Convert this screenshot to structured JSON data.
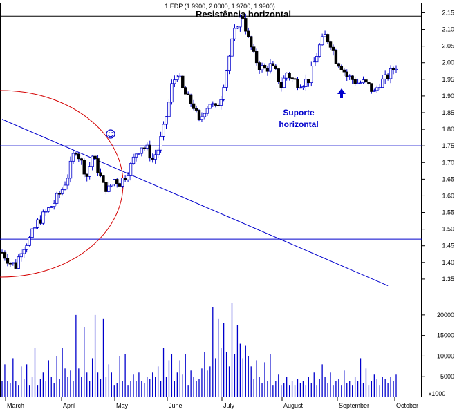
{
  "chart_data": {
    "type": "candlestick",
    "header": "1 EDP (1.9900, 2.0000, 1.9700, 1.9900)",
    "title": "Resistência horizontal",
    "annotations": [
      {
        "text_lines": [
          "Suporte",
          "horizontal"
        ]
      }
    ],
    "price_axis": {
      "ylim": [
        1.3,
        2.18
      ],
      "ticks": [
        "2.15",
        "2.10",
        "2.05",
        "2.00",
        "1.95",
        "1.90",
        "1.85",
        "1.80",
        "1.75",
        "1.70",
        "1.65",
        "1.60",
        "1.55",
        "1.50",
        "1.45",
        "1.40",
        "1.35"
      ]
    },
    "volume_axis": {
      "ylim": [
        0,
        23000
      ],
      "ticks": [
        "20000",
        "15000",
        "10000",
        "5000"
      ],
      "multiplier": "x1000"
    },
    "x_axis": {
      "months": [
        "March",
        "April",
        "May",
        "June",
        "July",
        "August",
        "September",
        "October"
      ]
    },
    "horizontal_lines": [
      2.14,
      1.93,
      1.75,
      1.47
    ],
    "trend_line": {
      "from": [
        0,
        1.83
      ],
      "to": [
        141,
        1.33
      ]
    },
    "price_path": [
      [
        0,
        1.43
      ],
      [
        3,
        1.4
      ],
      [
        5,
        1.39
      ],
      [
        7,
        1.44
      ],
      [
        10,
        1.47
      ],
      [
        13,
        1.52
      ],
      [
        16,
        1.55
      ],
      [
        19,
        1.58
      ],
      [
        22,
        1.62
      ],
      [
        24,
        1.66
      ],
      [
        26,
        1.72
      ],
      [
        27,
        1.74
      ],
      [
        29,
        1.7
      ],
      [
        31,
        1.66
      ],
      [
        33,
        1.72
      ],
      [
        35,
        1.68
      ],
      [
        37,
        1.63
      ],
      [
        39,
        1.62
      ],
      [
        41,
        1.65
      ],
      [
        43,
        1.64
      ],
      [
        45,
        1.66
      ],
      [
        47,
        1.69
      ],
      [
        49,
        1.73
      ],
      [
        51,
        1.75
      ],
      [
        53,
        1.74
      ],
      [
        55,
        1.71
      ],
      [
        57,
        1.74
      ],
      [
        59,
        1.8
      ],
      [
        61,
        1.88
      ],
      [
        62,
        1.93
      ],
      [
        64,
        1.97
      ],
      [
        66,
        1.92
      ],
      [
        68,
        1.89
      ],
      [
        70,
        1.87
      ],
      [
        72,
        1.82
      ],
      [
        74,
        1.86
      ],
      [
        76,
        1.88
      ],
      [
        78,
        1.86
      ],
      [
        80,
        1.9
      ],
      [
        82,
        1.98
      ],
      [
        84,
        2.06
      ],
      [
        86,
        2.12
      ],
      [
        88,
        2.14
      ],
      [
        90,
        2.07
      ],
      [
        92,
        2.02
      ],
      [
        94,
        1.99
      ],
      [
        96,
        1.98
      ],
      [
        98,
        1.99
      ],
      [
        100,
        1.97
      ],
      [
        102,
        1.93
      ],
      [
        104,
        1.97
      ],
      [
        106,
        1.95
      ],
      [
        108,
        1.94
      ],
      [
        110,
        1.94
      ],
      [
        112,
        1.95
      ],
      [
        114,
        2.0
      ],
      [
        116,
        2.05
      ],
      [
        118,
        2.08
      ],
      [
        120,
        2.06
      ],
      [
        122,
        2.01
      ],
      [
        124,
        1.99
      ],
      [
        126,
        1.96
      ],
      [
        128,
        1.95
      ],
      [
        130,
        1.94
      ],
      [
        132,
        1.94
      ],
      [
        134,
        1.93
      ],
      [
        136,
        1.91
      ],
      [
        138,
        1.94
      ],
      [
        140,
        1.95
      ],
      [
        142,
        1.97
      ],
      [
        144,
        1.99
      ]
    ],
    "volume": [
      4000,
      8000,
      4000,
      3500,
      9500,
      4000,
      3000,
      7500,
      4500,
      8000,
      3000,
      5000,
      12000,
      3000,
      4500,
      6000,
      4000,
      9000,
      5000,
      3500,
      10000,
      4500,
      12000,
      7000,
      5000,
      6500,
      4000,
      20000,
      7000,
      5000,
      17000,
      6000,
      4000,
      9500,
      20000,
      6000,
      4500,
      19000,
      5000,
      8000,
      6000,
      3000,
      3500,
      10000,
      4000,
      10500,
      3000,
      4000,
      5500,
      4000,
      6000,
      4000,
      3500,
      5000,
      4500,
      6000,
      5000,
      7500,
      4000,
      12000,
      5000,
      9000,
      10500,
      4000,
      6000,
      9000,
      5500,
      10500,
      3000,
      6500,
      5000,
      4000,
      4500,
      7000,
      11000,
      6500,
      7500,
      22000,
      9500,
      19000,
      12000,
      18000,
      11000,
      7500,
      23000,
      10500,
      17500,
      13000,
      9500,
      12500,
      10000,
      7500,
      4500,
      9000,
      5000,
      3500,
      8500,
      4000,
      10500,
      3000,
      4000,
      5500,
      3000,
      3500,
      5000,
      3000,
      4000,
      3000,
      4500,
      3500,
      4000,
      3000,
      5000,
      3500,
      6000,
      3000,
      4500,
      8000,
      5000,
      3500,
      6000,
      3000,
      4000,
      4500,
      3000,
      6500,
      3500,
      4000,
      3000,
      5000,
      4000,
      9500,
      3500,
      7000,
      3000,
      4000,
      5500,
      4500,
      3000,
      5000,
      4500,
      3500,
      5000,
      4000,
      5500
    ]
  }
}
